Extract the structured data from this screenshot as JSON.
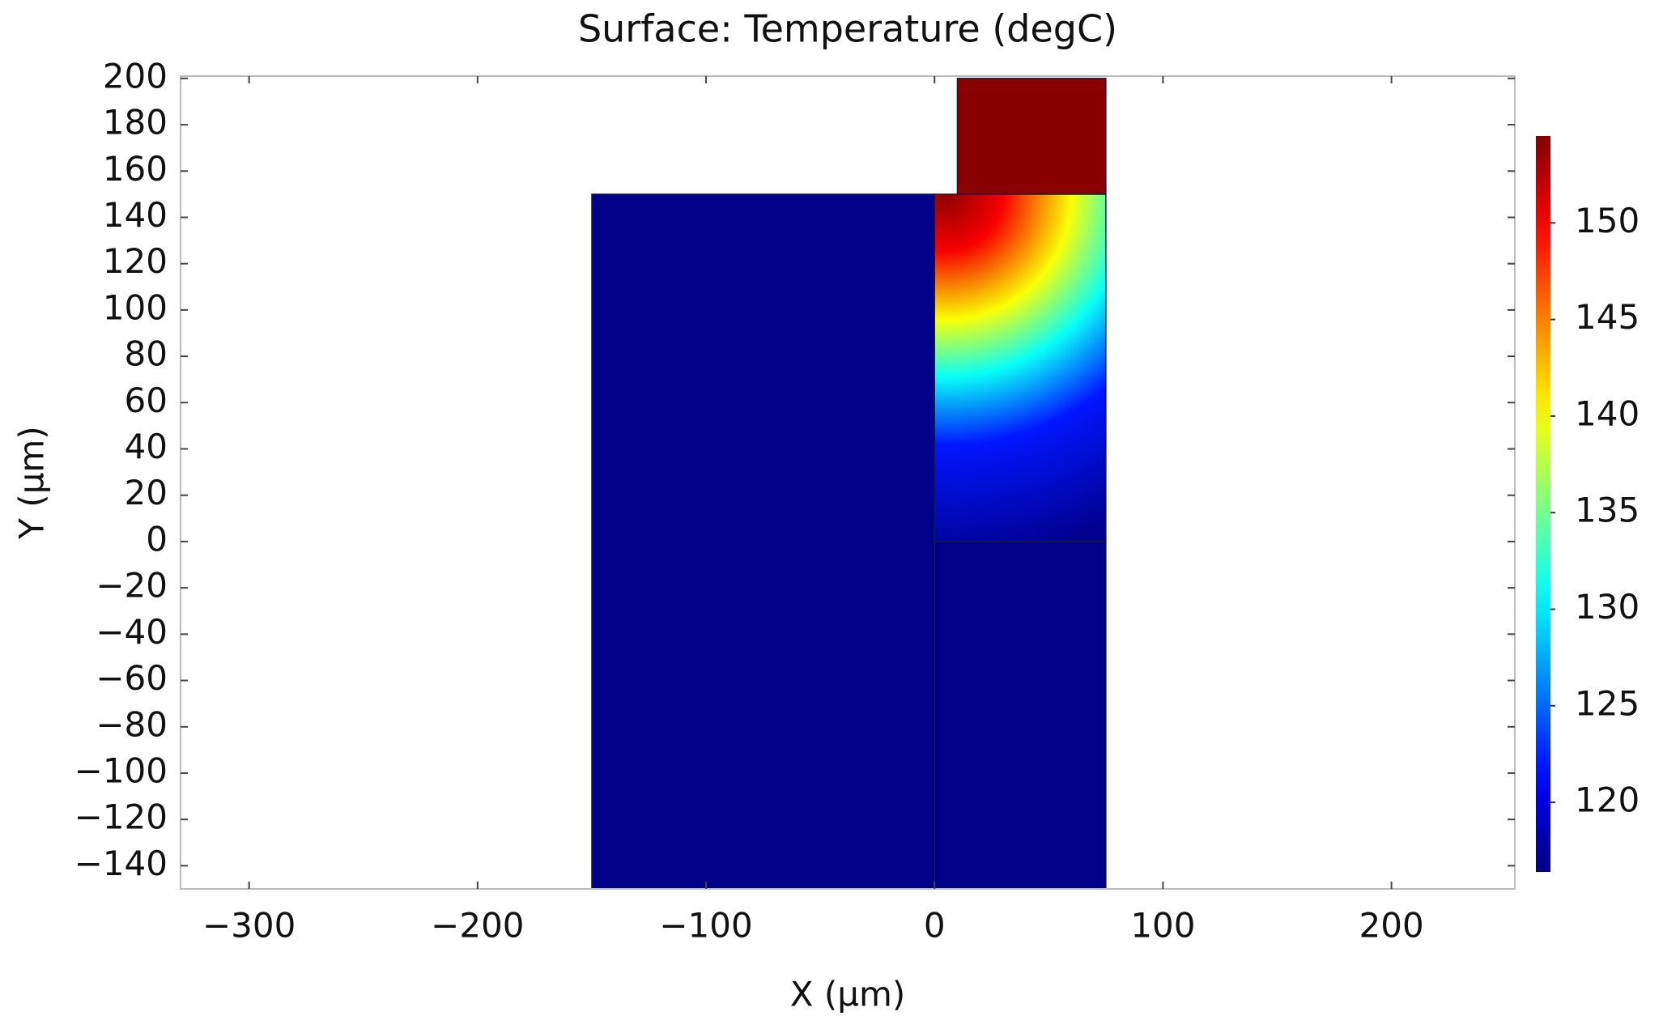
{
  "chart_data": {
    "type": "surface",
    "title": "Surface: Temperature (degC)",
    "xlabel": "X (µm)",
    "ylabel": "Y (µm)",
    "xlim": [
      -330,
      254
    ],
    "xticks": [
      {
        "value": -300,
        "label": "−300"
      },
      {
        "value": -200,
        "label": "−200"
      },
      {
        "value": -100,
        "label": "−100"
      },
      0,
      100,
      200
    ],
    "ylim": [
      -150,
      201
    ],
    "yticks": [
      {
        "value": -140,
        "label": "−140"
      },
      {
        "value": -120,
        "label": "−120"
      },
      {
        "value": -100,
        "label": "−100"
      },
      {
        "value": -80,
        "label": "−80"
      },
      {
        "value": -60,
        "label": "−60"
      },
      {
        "value": -40,
        "label": "−40"
      },
      {
        "value": -20,
        "label": "−20"
      },
      0,
      20,
      40,
      60,
      80,
      100,
      120,
      140,
      160,
      180,
      200
    ],
    "colormap": "rainbow",
    "clim": [
      116.4,
      154.5
    ],
    "cticks": [
      120,
      125,
      130,
      135,
      140,
      145,
      150
    ],
    "domains": [
      {
        "x": [
          -150,
          0
        ],
        "y": [
          -150,
          150
        ],
        "temperature": 116.8
      },
      {
        "x": [
          0,
          75
        ],
        "y": [
          -150,
          0
        ],
        "temperature": 116.8
      },
      {
        "x": [
          0,
          75
        ],
        "y": [
          0,
          150
        ],
        "field": {
          "center": [
            5,
            150
          ],
          "radii": [
            0,
            25,
            55,
            80,
            110,
            160
          ],
          "temperatures": [
            154,
            150,
            140,
            131,
            122,
            117
          ]
        }
      },
      {
        "x": [
          10,
          75
        ],
        "y": [
          150,
          200
        ],
        "temperature": 154.2
      }
    ]
  }
}
